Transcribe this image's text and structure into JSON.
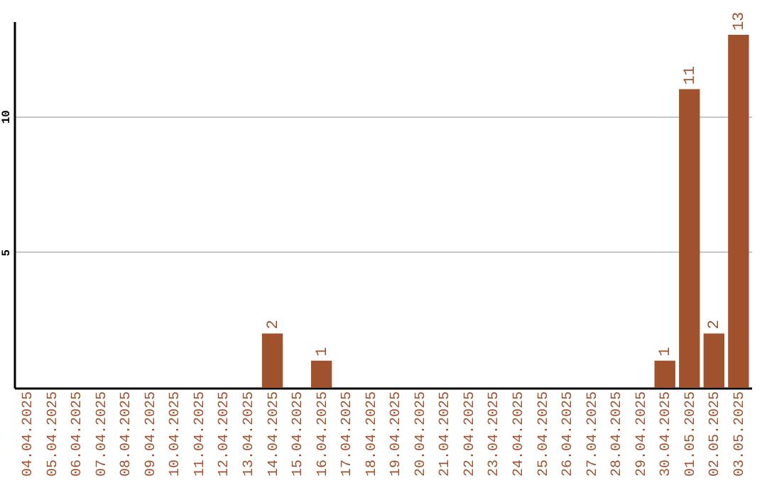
{
  "chart_data": {
    "type": "bar",
    "categories": [
      "04.04.2025",
      "05.04.2025",
      "06.04.2025",
      "07.04.2025",
      "08.04.2025",
      "09.04.2025",
      "10.04.2025",
      "11.04.2025",
      "12.04.2025",
      "13.04.2025",
      "14.04.2025",
      "15.04.2025",
      "16.04.2025",
      "17.04.2025",
      "18.04.2025",
      "19.04.2025",
      "20.04.2025",
      "21.04.2025",
      "22.04.2025",
      "23.04.2025",
      "24.04.2025",
      "25.04.2025",
      "26.04.2025",
      "27.04.2025",
      "28.04.2025",
      "29.04.2025",
      "30.04.2025",
      "01.05.2025",
      "02.05.2025",
      "03.05.2025"
    ],
    "values": [
      0,
      0,
      0,
      0,
      0,
      0,
      0,
      0,
      0,
      0,
      2,
      0,
      1,
      0,
      0,
      0,
      0,
      0,
      0,
      0,
      0,
      0,
      0,
      0,
      0,
      0,
      1,
      11,
      2,
      13
    ],
    "value_labels": [
      null,
      null,
      null,
      null,
      null,
      null,
      null,
      null,
      null,
      null,
      "2",
      null,
      "1",
      null,
      null,
      null,
      null,
      null,
      null,
      null,
      null,
      null,
      null,
      null,
      null,
      null,
      "1",
      "11",
      "2",
      "13"
    ],
    "color": "#a0522d",
    "ylim": [
      0,
      13.5
    ],
    "yticks": [
      5,
      10
    ],
    "grid": "y"
  }
}
